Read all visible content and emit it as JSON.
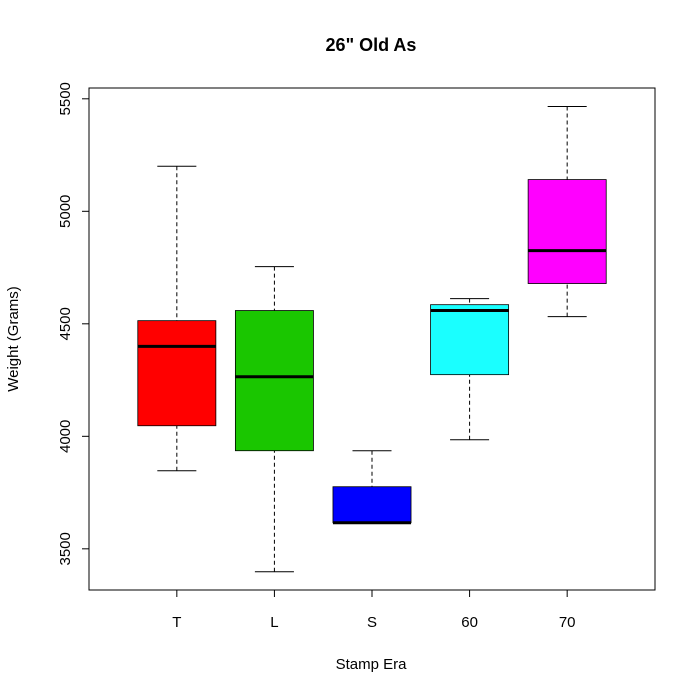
{
  "chart_data": {
    "type": "boxplot",
    "title": "26\" Old As",
    "x_label": "Stamp Era",
    "y_label": "Weight (Grams)",
    "categories": [
      "T",
      "L",
      "S",
      "60",
      "70"
    ],
    "boxes": [
      {
        "min": 3847,
        "q1": 4047,
        "median": 4400,
        "q3": 4514,
        "max": 5200,
        "color": "#ff0000"
      },
      {
        "min": 3398,
        "q1": 3936,
        "median": 4265,
        "q3": 4559,
        "max": 4754,
        "color": "#1ac600"
      },
      {
        "min": 3616,
        "q1": 3616,
        "median": 3616,
        "q3": 3776,
        "max": 3936,
        "color": "#0000ff"
      },
      {
        "min": 3985,
        "q1": 4274,
        "median": 4559,
        "q3": 4585,
        "max": 4612,
        "color": "#1affff"
      },
      {
        "min": 4532,
        "q1": 4679,
        "median": 4825,
        "q3": 5141,
        "max": 5466,
        "color": "#ff00ff"
      }
    ],
    "ylim": [
      3317,
      5548
    ],
    "yticks": [
      3500,
      4000,
      4500,
      5000,
      5500
    ]
  }
}
